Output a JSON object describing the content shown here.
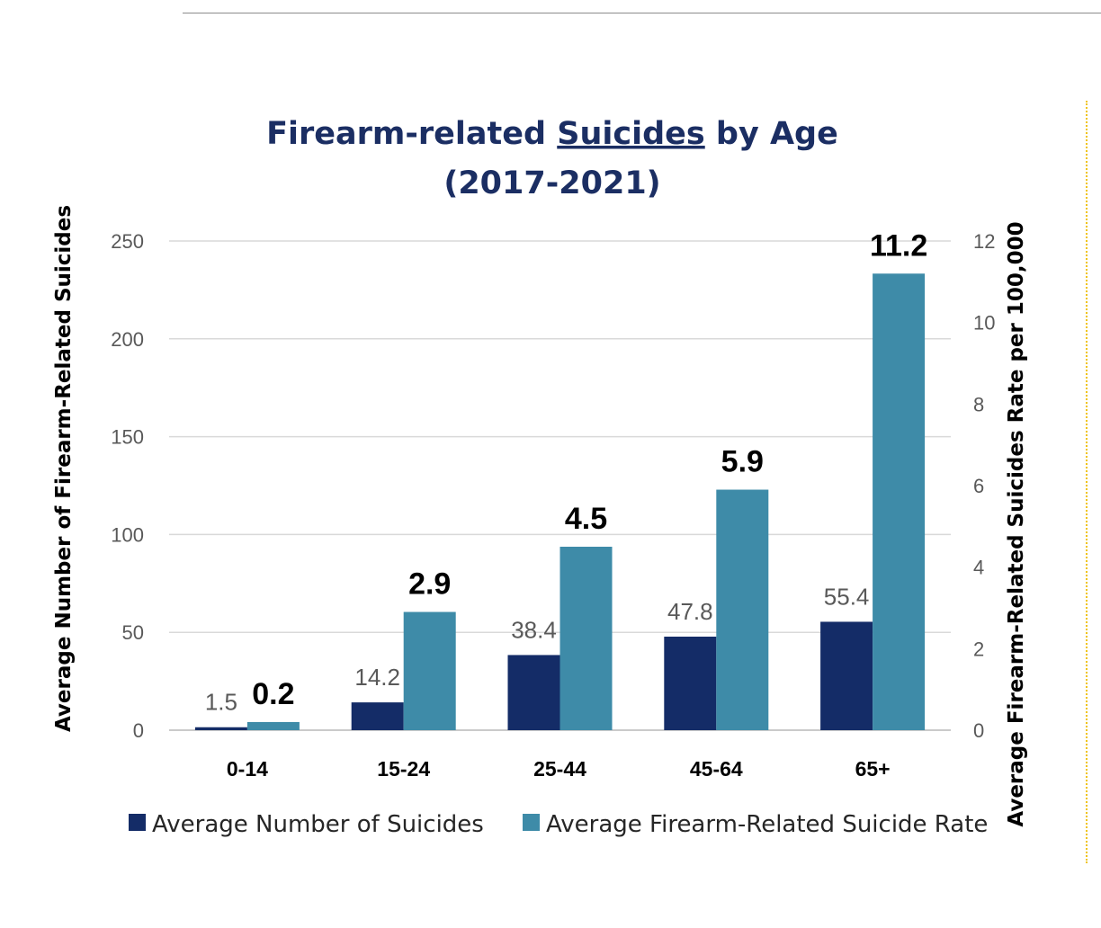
{
  "chart_data": {
    "type": "bar",
    "title": {
      "prefix": "Firearm-related ",
      "emphasis": "Suicides",
      "suffix": " by Age",
      "line2": "(2017-2021)"
    },
    "categories": [
      "0-14",
      "15-24",
      "25-44",
      "45-64",
      "65+"
    ],
    "series": [
      {
        "name": "Average Number of Suicides",
        "axis": "left",
        "color": "#142c67",
        "values": [
          1.5,
          14.2,
          38.4,
          47.8,
          55.4
        ],
        "labels": [
          "1.5",
          "14.2",
          "38.4",
          "47.8",
          "55.4"
        ]
      },
      {
        "name": "Average Firearm-Related Suicide Rate",
        "axis": "right",
        "color": "#3e8ba8",
        "values": [
          0.2,
          2.9,
          4.5,
          5.9,
          11.2
        ],
        "labels": [
          "0.2",
          "2.9",
          "4.5",
          "5.9",
          "11.2"
        ]
      }
    ],
    "y_left": {
      "label": "Average Number of Firearm-Related Suicides",
      "ylim": [
        0,
        250
      ],
      "ticks": [
        0,
        50,
        100,
        150,
        200,
        250
      ]
    },
    "y_right": {
      "label": "Average Firearm-Related Suicides Rate per 100,000",
      "ylim": [
        0,
        12
      ],
      "ticks": [
        0,
        2,
        4,
        6,
        8,
        10,
        12
      ]
    },
    "grid": true,
    "legend_position": "bottom"
  }
}
